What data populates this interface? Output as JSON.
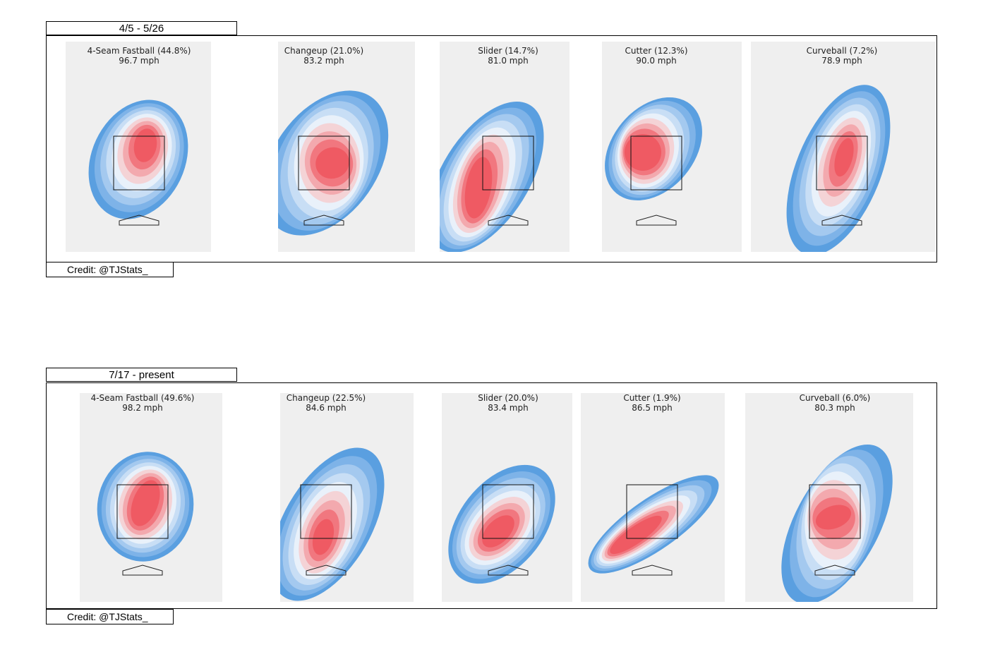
{
  "colors": {
    "levels": [
      "#5a9fe0",
      "#7eb3e8",
      "#a4c9ef",
      "#c8def5",
      "#e9f1fa",
      "#f4d3d6",
      "#f3a9ae",
      "#f1777f",
      "#ef5a63"
    ],
    "panel_bg": "#efefef"
  },
  "sections": [
    {
      "period_label": "4/5 - 5/26",
      "credit": "Credit: @TJStats_",
      "pitches": [
        {
          "name": "4-Seam Fastball (44.8%)",
          "speed": "96.7 mph"
        },
        {
          "name": "Changeup (21.0%)",
          "speed": "83.2 mph"
        },
        {
          "name": "Slider (14.7%)",
          "speed": "81.0 mph"
        },
        {
          "name": "Cutter (12.3%)",
          "speed": "90.0 mph"
        },
        {
          "name": "Curveball (7.2%)",
          "speed": "78.9 mph"
        }
      ]
    },
    {
      "period_label": "7/17 - present",
      "credit": "Credit: @TJStats_",
      "pitches": [
        {
          "name": "4-Seam Fastball (49.6%)",
          "speed": "98.2 mph"
        },
        {
          "name": "Changeup (22.5%)",
          "speed": "84.6 mph"
        },
        {
          "name": "Slider (20.0%)",
          "speed": "83.4 mph"
        },
        {
          "name": "Cutter (1.9%)",
          "speed": "86.5 mph"
        },
        {
          "name": "Curveball (6.0%)",
          "speed": "80.3 mph"
        }
      ]
    }
  ],
  "chart_data": {
    "type": "heatmap",
    "description": "Pitch location density contour plots (kernel density) by pitch type, shown relative to strike zone and home plate",
    "sections": [
      {
        "period": "4/5 - 5/26",
        "pitch_types": [
          "4-Seam Fastball",
          "Changeup",
          "Slider",
          "Cutter",
          "Curveball"
        ],
        "usage_pct": [
          44.8,
          21.0,
          14.7,
          12.3,
          7.2
        ],
        "velocity_mph": [
          96.7,
          83.2,
          81.0,
          90.0,
          78.9
        ]
      },
      {
        "period": "7/17 - present",
        "pitch_types": [
          "4-Seam Fastball",
          "Changeup",
          "Slider",
          "Cutter",
          "Curveball"
        ],
        "usage_pct": [
          49.6,
          22.5,
          20.0,
          1.9,
          6.0
        ],
        "velocity_mph": [
          98.2,
          84.6,
          83.4,
          86.5,
          80.3
        ]
      }
    ],
    "colormap": "blue (low density) to red (high density)"
  }
}
